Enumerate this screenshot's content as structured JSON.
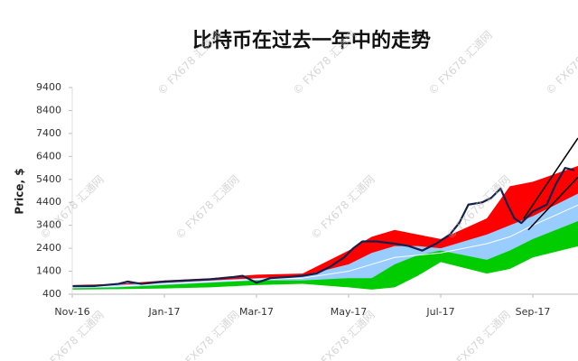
{
  "chart_data": {
    "type": "band-line",
    "title": "比特币在过去一年中的走势",
    "y_label": "Price, $",
    "watermark": "© FX678 汇通网",
    "xlim": [
      0,
      10.98
    ],
    "xticks": [
      {
        "value": 0,
        "label": "Nov-16"
      },
      {
        "value": 2,
        "label": "Jan-17"
      },
      {
        "value": 4,
        "label": "Mar-17"
      },
      {
        "value": 6,
        "label": "May-17"
      },
      {
        "value": 8,
        "label": "Jul-17"
      },
      {
        "value": 10,
        "label": "Sep-17"
      }
    ],
    "ylim": [
      400,
      9400
    ],
    "yticks": [
      400,
      1400,
      2400,
      3400,
      4400,
      5400,
      6400,
      7400,
      8400,
      9400
    ],
    "series": [
      {
        "kind": "area",
        "color": "#ff0000",
        "x": [
          0,
          1,
          2,
          3,
          4,
          5,
          6,
          6.5,
          7,
          7.5,
          8,
          9,
          9.5,
          10,
          11
        ],
        "values": [
          800,
          850,
          1000,
          1100,
          1250,
          1300,
          2300,
          2900,
          3200,
          3000,
          2800,
          3700,
          5100,
          5300,
          6000
        ]
      },
      {
        "kind": "area",
        "color": "#99ccff",
        "x": [
          0,
          1,
          2,
          3,
          4,
          5,
          6,
          6.5,
          7,
          7.5,
          8,
          9,
          9.5,
          10,
          11
        ],
        "values": [
          780,
          820,
          900,
          1000,
          1100,
          1200,
          1700,
          2200,
          2500,
          2500,
          2400,
          3000,
          3400,
          3800,
          4800
        ]
      },
      {
        "kind": "area",
        "color": "#00cc00",
        "x": [
          0,
          1,
          2,
          3,
          4,
          5,
          6,
          6.5,
          7,
          7.5,
          8,
          9,
          9.5,
          10,
          11
        ],
        "values": [
          650,
          700,
          800,
          900,
          1000,
          1000,
          1100,
          1100,
          1700,
          2100,
          2300,
          1900,
          2300,
          2800,
          3600
        ]
      },
      {
        "kind": "area",
        "color": "#ffffff",
        "x": [
          0,
          1,
          2,
          3,
          4,
          5,
          6,
          6.5,
          7,
          7.5,
          8,
          9,
          9.5,
          10,
          11
        ],
        "values": [
          600,
          620,
          650,
          700,
          800,
          850,
          700,
          600,
          700,
          1200,
          1800,
          1300,
          1500,
          2000,
          2500
        ]
      },
      {
        "kind": "line",
        "color": "#ffffff",
        "x": [
          0,
          1,
          2,
          3,
          4,
          5,
          6,
          6.5,
          7,
          7.5,
          8,
          9,
          9.5,
          10,
          11
        ],
        "values": [
          700,
          750,
          850,
          950,
          1050,
          1100,
          1400,
          1700,
          2000,
          2100,
          2200,
          2600,
          2900,
          3400,
          4300
        ]
      },
      {
        "kind": "line",
        "color": "#14204a",
        "x": [
          0,
          0.5,
          1,
          1.2,
          1.5,
          2,
          2.5,
          3,
          3.5,
          3.7,
          4,
          4.3,
          4.7,
          5,
          5.3,
          5.6,
          5.9,
          6.1,
          6.3,
          6.6,
          7,
          7.3,
          7.6,
          7.9,
          8.2,
          8.4,
          8.6,
          8.9,
          9.1,
          9.3,
          9.45,
          9.6,
          9.75,
          10,
          10.3,
          10.5,
          10.7,
          10.9
        ],
        "values": [
          750,
          760,
          850,
          950,
          850,
          950,
          1000,
          1050,
          1150,
          1200,
          900,
          1100,
          1150,
          1200,
          1300,
          1600,
          2000,
          2400,
          2700,
          2700,
          2600,
          2500,
          2300,
          2600,
          3000,
          3500,
          4300,
          4400,
          4600,
          5000,
          4300,
          3700,
          3500,
          4000,
          4300,
          5200,
          5900,
          5800
        ]
      },
      {
        "kind": "line",
        "color": "#000000",
        "x": [
          9.8,
          10.98
        ],
        "values": [
          3700,
          7200
        ]
      },
      {
        "kind": "line",
        "color": "#000000",
        "x": [
          9.9,
          10.98
        ],
        "values": [
          3200,
          5500
        ]
      }
    ]
  }
}
